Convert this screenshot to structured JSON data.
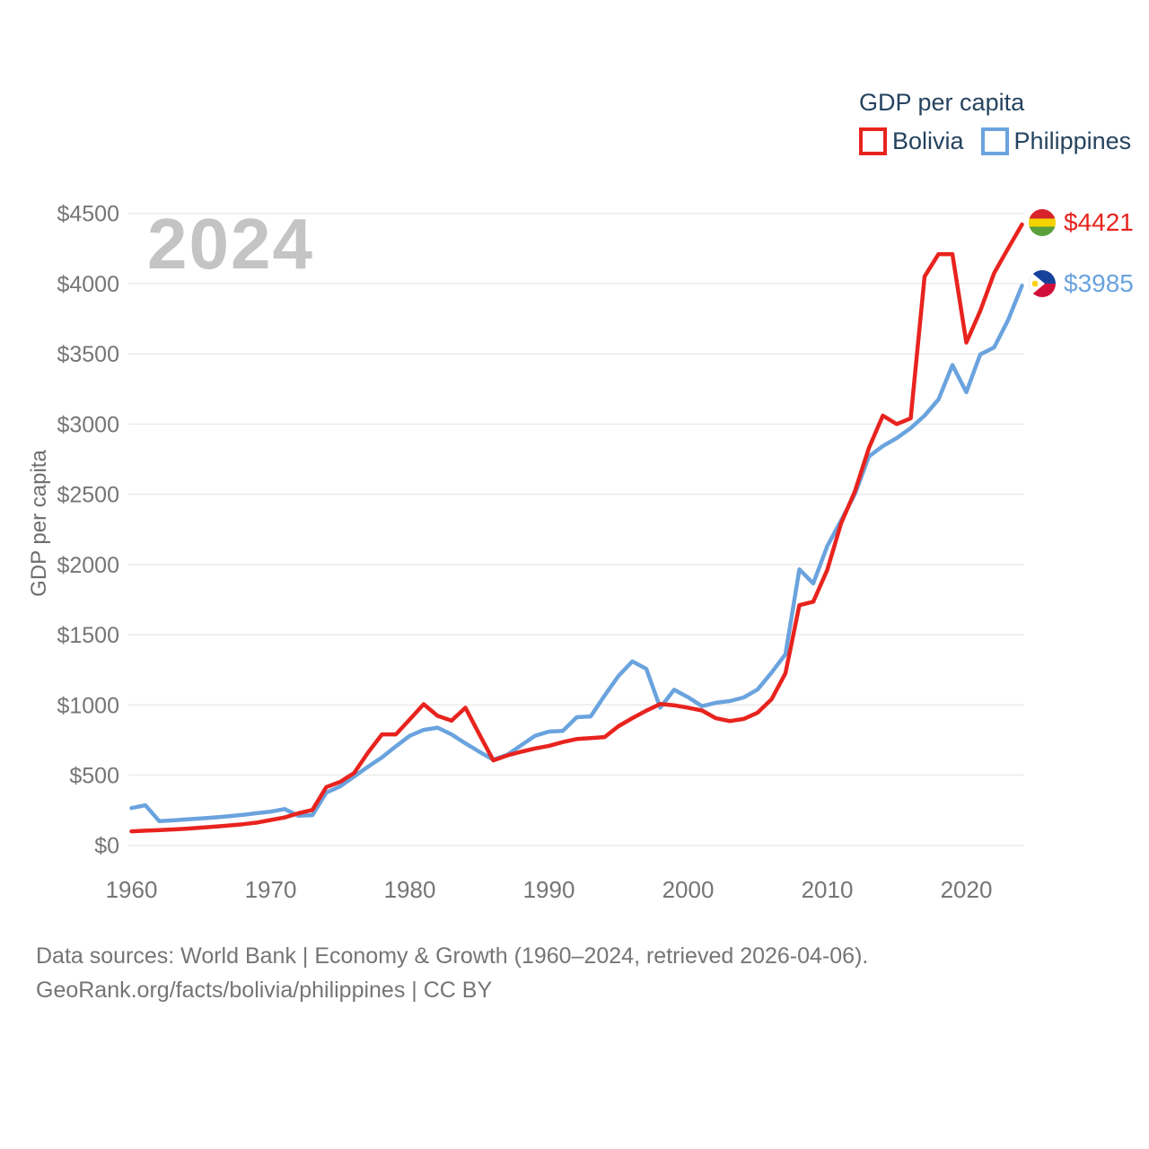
{
  "chart_data": {
    "type": "line",
    "title": "GDP per capita",
    "watermark": "2024",
    "ylabel": "GDP per capita",
    "xlabel": "",
    "xlim": [
      1960,
      2024
    ],
    "ylim": [
      0,
      4500
    ],
    "x_ticks": [
      1960,
      1970,
      1980,
      1990,
      2000,
      2010,
      2020
    ],
    "y_ticks": [
      0,
      500,
      1000,
      1500,
      2000,
      2500,
      3000,
      3500,
      4000,
      4500
    ],
    "y_tick_prefix": "$",
    "grid": true,
    "legend_position": "top-right",
    "years": [
      1960,
      1961,
      1962,
      1963,
      1964,
      1965,
      1966,
      1967,
      1968,
      1969,
      1970,
      1971,
      1972,
      1973,
      1974,
      1975,
      1976,
      1977,
      1978,
      1979,
      1980,
      1981,
      1982,
      1983,
      1984,
      1985,
      1986,
      1987,
      1988,
      1989,
      1990,
      1991,
      1992,
      1993,
      1994,
      1995,
      1996,
      1997,
      1998,
      1999,
      2000,
      2001,
      2002,
      2003,
      2004,
      2005,
      2006,
      2007,
      2008,
      2009,
      2010,
      2011,
      2012,
      2013,
      2014,
      2015,
      2016,
      2017,
      2018,
      2019,
      2020,
      2021,
      2022,
      2023,
      2024
    ],
    "series": [
      {
        "name": "Bolivia",
        "color": "#e8231e",
        "flag": "bolivia-flag",
        "end_label": "$4421",
        "values": [
          100,
          104,
          108,
          113,
          119,
          126,
          133,
          141,
          150,
          162,
          180,
          198,
          228,
          252,
          415,
          452,
          515,
          660,
          790,
          790,
          897,
          1005,
          922,
          888,
          980,
          790,
          605,
          640,
          666,
          690,
          708,
          735,
          757,
          763,
          771,
          848,
          906,
          959,
          1006,
          997,
          980,
          960,
          905,
          885,
          900,
          945,
          1040,
          1225,
          1710,
          1735,
          1960,
          2293,
          2523,
          2830,
          3060,
          3000,
          3040,
          4050,
          4210,
          4210,
          3580,
          3805,
          4075,
          4250,
          4421
        ]
      },
      {
        "name": "Philippines",
        "color": "#6aa3de",
        "flag": "philippines-flag",
        "end_label": "$3985",
        "values": [
          265,
          285,
          172,
          178,
          185,
          192,
          199,
          207,
          217,
          229,
          240,
          258,
          210,
          215,
          375,
          420,
          490,
          560,
          626,
          705,
          780,
          822,
          838,
          790,
          726,
          666,
          610,
          644,
          712,
          780,
          810,
          815,
          912,
          918,
          1066,
          1206,
          1310,
          1257,
          980,
          1108,
          1055,
          991,
          1015,
          1027,
          1053,
          1110,
          1230,
          1360,
          1965,
          1865,
          2130,
          2312,
          2504,
          2770,
          2843,
          2900,
          2971,
          3060,
          3175,
          3420,
          3227,
          3495,
          3546,
          3740,
          3985
        ]
      }
    ]
  },
  "footer": {
    "line1": "Data sources: World Bank | Economy & Growth (1960–2024, retrieved 2026-04-06).",
    "line2": "GeoRank.org/facts/bolivia/philippines | CC BY"
  },
  "colors": {
    "grid": "#ebebeb",
    "axis_text": "#757575",
    "legend_text": "#25435f",
    "watermark": "#c4c4c4",
    "bolivia_red": "#e8231e",
    "philippines_blue": "#6aa3de"
  }
}
